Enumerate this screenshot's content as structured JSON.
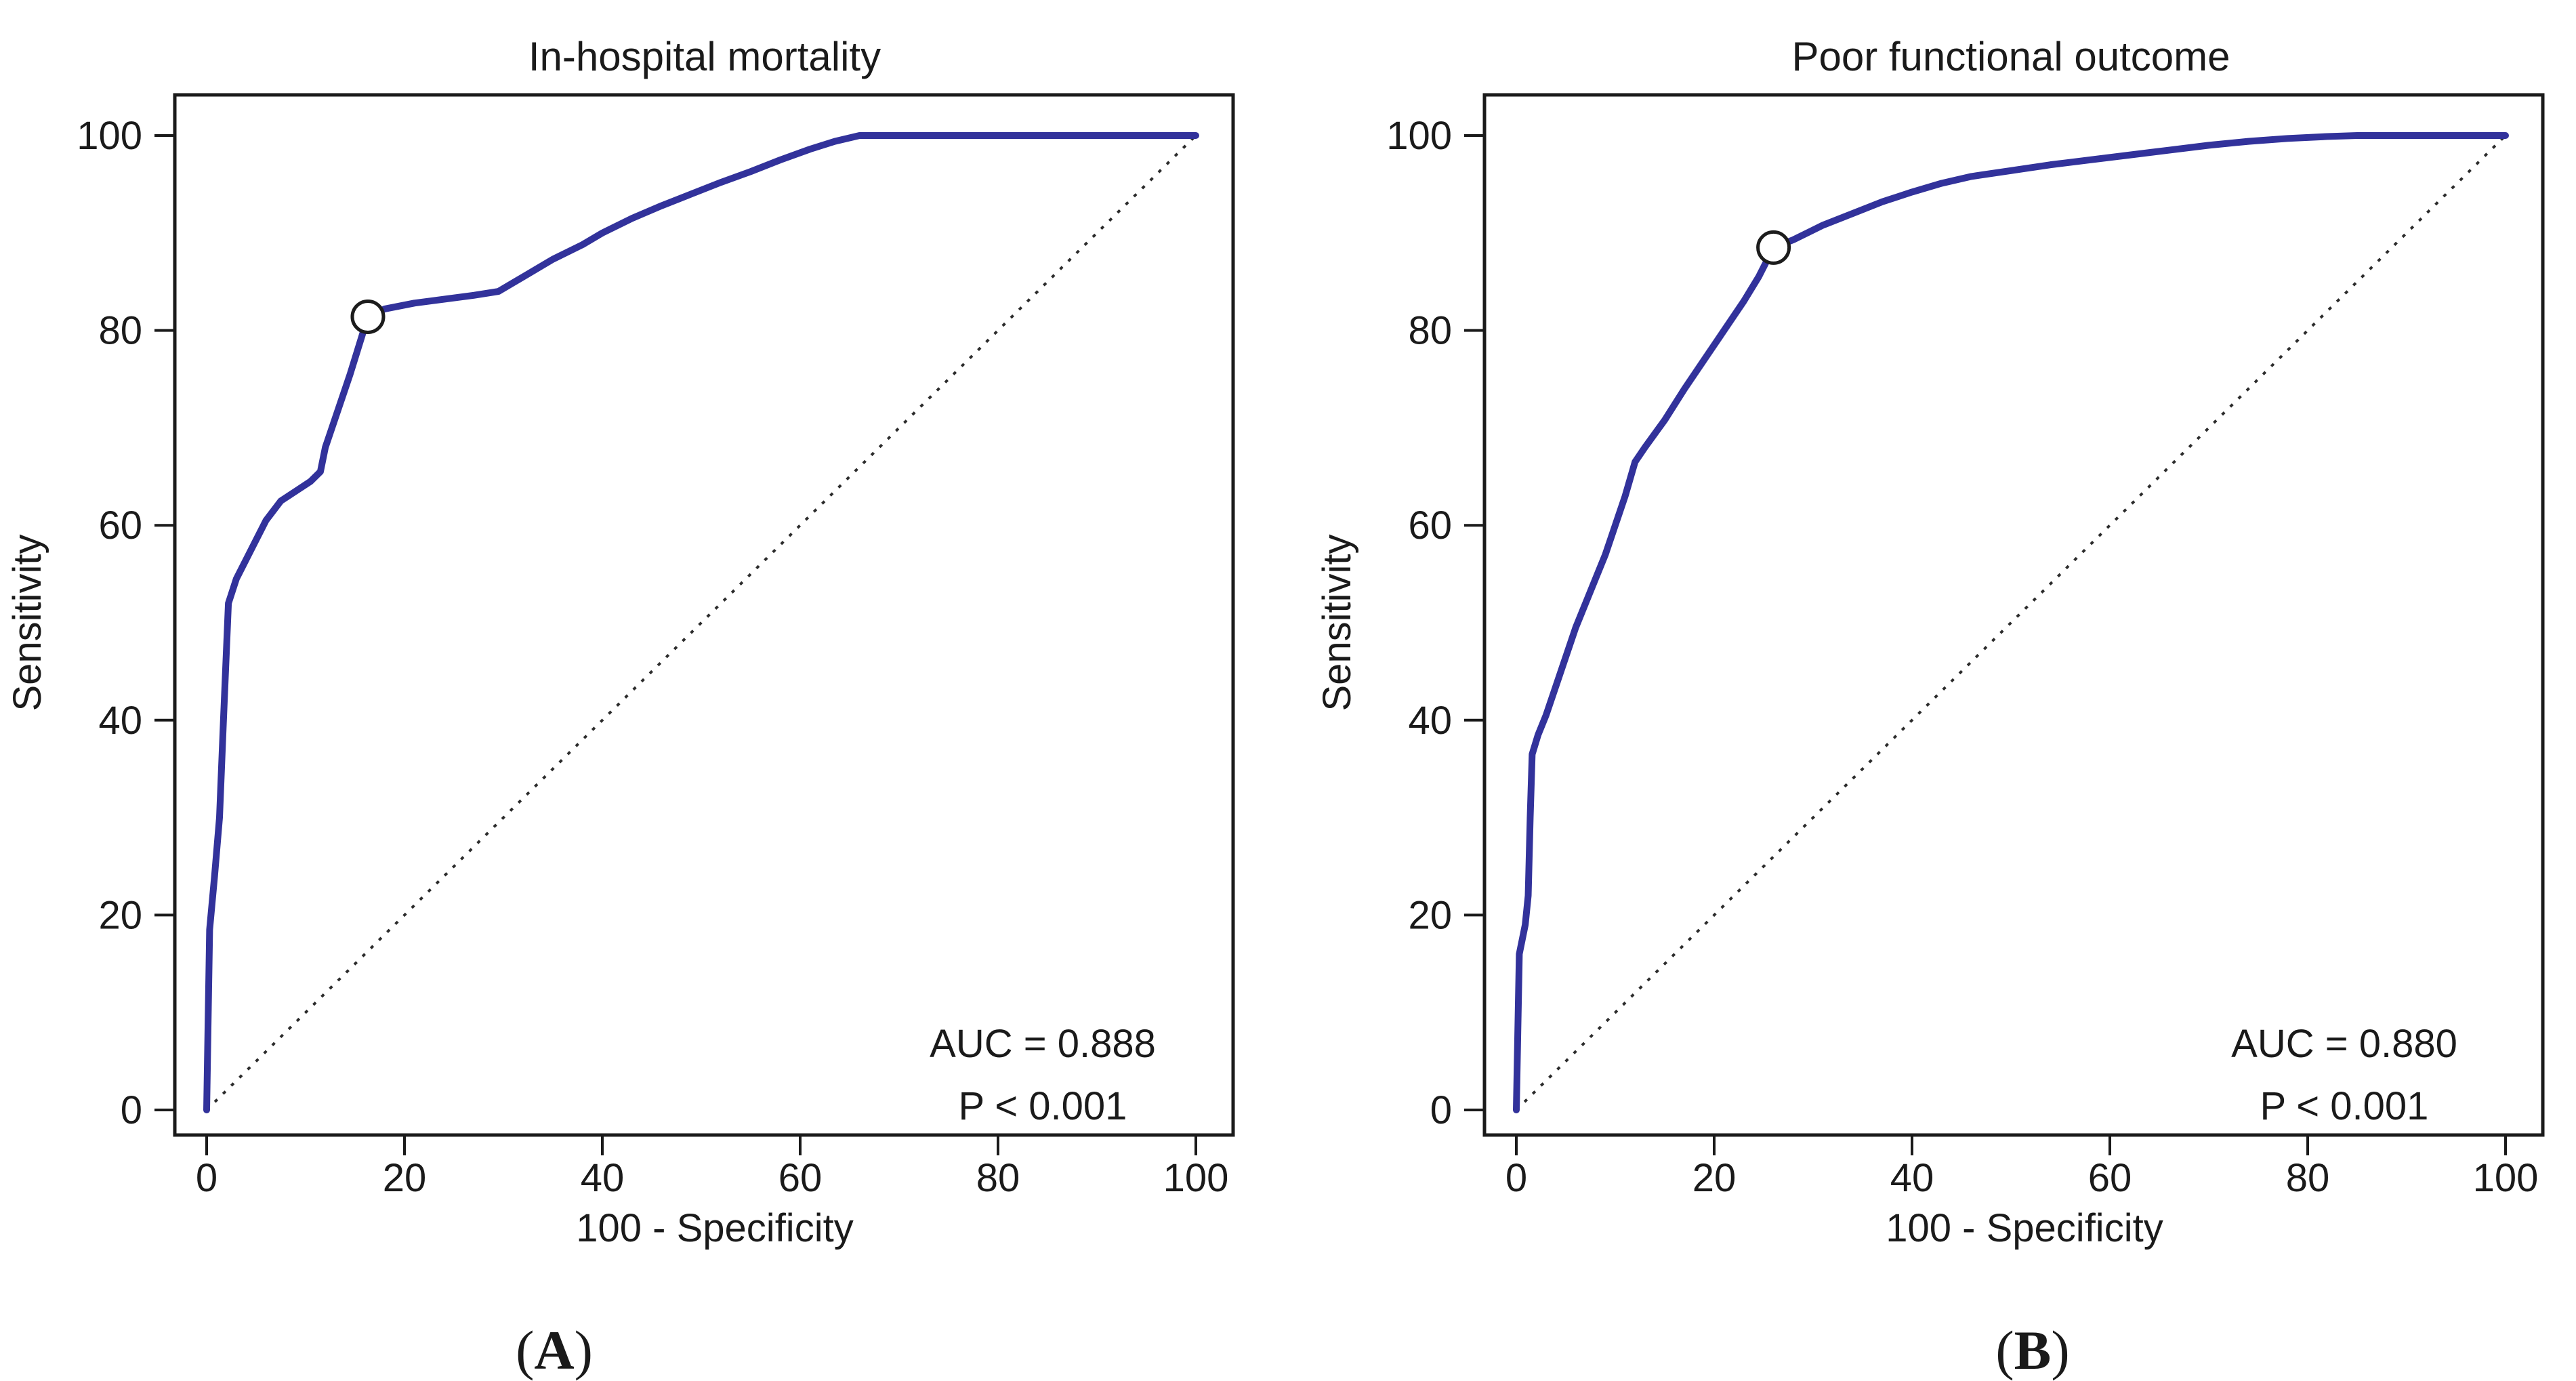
{
  "figure": {
    "background": "#ffffff",
    "text_color": "#1a1a1a",
    "curve_color": "#32329b",
    "reference_line_color": "#2b2b2b",
    "captions": [
      {
        "open": "(",
        "letter": "A",
        "close": ")"
      },
      {
        "open": "(",
        "letter": "B",
        "close": ")"
      }
    ]
  },
  "chart_data": [
    {
      "type": "line",
      "title": "In-hospital mortality",
      "xlabel": "100 - Specificity",
      "ylabel": "Sensitivity",
      "xlim": [
        0,
        100
      ],
      "ylim": [
        0,
        100
      ],
      "x_ticks": [
        0,
        20,
        40,
        60,
        80,
        100
      ],
      "y_ticks": [
        0,
        20,
        40,
        60,
        80,
        100
      ],
      "grid": false,
      "legend": "none",
      "panel_label": "A",
      "annotation": {
        "auc_label": "AUC = 0.888",
        "p_label": "P < 0.001"
      },
      "cutoff_marker": {
        "x": 16.3,
        "y": 81.4
      },
      "series": [
        {
          "name": "ROC curve",
          "style": "solid",
          "color": "#32329b",
          "points": [
            [
              0,
              0
            ],
            [
              0.3,
              18.5
            ],
            [
              0.8,
              24
            ],
            [
              1.3,
              30
            ],
            [
              1.7,
              40
            ],
            [
              2.2,
              52
            ],
            [
              3,
              54.5
            ],
            [
              4,
              56.5
            ],
            [
              5,
              58.5
            ],
            [
              6,
              60.5
            ],
            [
              7.5,
              62.5
            ],
            [
              9,
              63.5
            ],
            [
              10.5,
              64.5
            ],
            [
              11.5,
              65.5
            ],
            [
              12,
              68
            ],
            [
              13,
              71
            ],
            [
              14.5,
              75.5
            ],
            [
              16.3,
              81.4
            ],
            [
              18,
              82.2
            ],
            [
              21,
              82.8
            ],
            [
              24,
              83.2
            ],
            [
              27,
              83.6
            ],
            [
              29.5,
              84
            ],
            [
              32,
              85.5
            ],
            [
              35,
              87.3
            ],
            [
              38,
              88.8
            ],
            [
              40,
              90
            ],
            [
              43,
              91.5
            ],
            [
              46,
              92.8
            ],
            [
              49,
              94
            ],
            [
              52,
              95.2
            ],
            [
              55,
              96.3
            ],
            [
              58,
              97.5
            ],
            [
              61,
              98.6
            ],
            [
              63.5,
              99.4
            ],
            [
              66,
              100
            ],
            [
              100,
              100
            ]
          ]
        },
        {
          "name": "Reference diagonal",
          "style": "dotted",
          "color": "#2b2b2b",
          "points": [
            [
              0,
              0
            ],
            [
              100,
              100
            ]
          ]
        }
      ]
    },
    {
      "type": "line",
      "title": "Poor functional outcome",
      "xlabel": "100 - Specificity",
      "ylabel": "Sensitivity",
      "xlim": [
        0,
        100
      ],
      "ylim": [
        0,
        100
      ],
      "x_ticks": [
        0,
        20,
        40,
        60,
        80,
        100
      ],
      "y_ticks": [
        0,
        20,
        40,
        60,
        80,
        100
      ],
      "grid": false,
      "legend": "none",
      "panel_label": "B",
      "annotation": {
        "auc_label": "AUC = 0.880",
        "p_label": "P < 0.001"
      },
      "cutoff_marker": {
        "x": 26,
        "y": 88.5
      },
      "series": [
        {
          "name": "ROC curve",
          "style": "solid",
          "color": "#32329b",
          "points": [
            [
              0,
              0
            ],
            [
              0.3,
              16
            ],
            [
              0.9,
              19
            ],
            [
              1.2,
              22
            ],
            [
              1.4,
              30
            ],
            [
              1.6,
              36.5
            ],
            [
              2.2,
              38.5
            ],
            [
              3,
              40.5
            ],
            [
              4,
              43.5
            ],
            [
              5,
              46.5
            ],
            [
              6,
              49.5
            ],
            [
              7,
              52
            ],
            [
              8,
              54.5
            ],
            [
              9,
              57
            ],
            [
              10,
              60
            ],
            [
              11,
              63
            ],
            [
              12,
              66.5
            ],
            [
              13,
              68
            ],
            [
              15,
              70.8
            ],
            [
              17,
              74
            ],
            [
              19,
              77
            ],
            [
              21,
              80
            ],
            [
              23,
              83
            ],
            [
              24.5,
              85.5
            ],
            [
              26,
              88.5
            ],
            [
              28,
              89.3
            ],
            [
              31,
              90.8
            ],
            [
              34,
              92
            ],
            [
              37,
              93.2
            ],
            [
              40,
              94.2
            ],
            [
              43,
              95.1
            ],
            [
              46,
              95.8
            ],
            [
              50,
              96.4
            ],
            [
              54,
              97
            ],
            [
              58,
              97.5
            ],
            [
              62,
              98
            ],
            [
              66,
              98.5
            ],
            [
              70,
              99
            ],
            [
              74,
              99.4
            ],
            [
              78,
              99.7
            ],
            [
              82,
              99.9
            ],
            [
              85,
              100
            ],
            [
              100,
              100
            ]
          ]
        },
        {
          "name": "Reference diagonal",
          "style": "dotted",
          "color": "#2b2b2b",
          "points": [
            [
              0,
              0
            ],
            [
              100,
              100
            ]
          ]
        }
      ]
    }
  ]
}
